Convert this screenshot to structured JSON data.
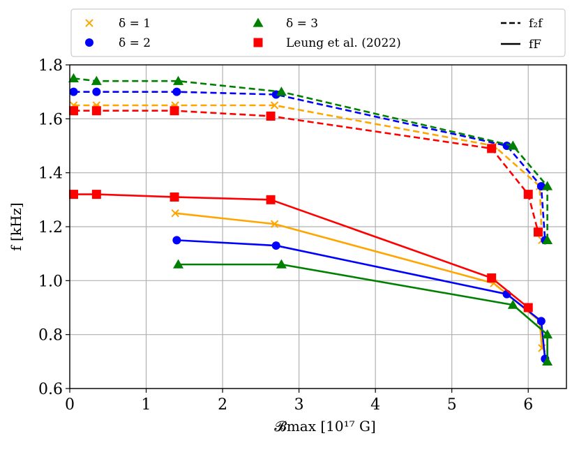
{
  "chart_data": {
    "type": "line",
    "xlabel": "𝓑max [10¹⁷ G]",
    "ylabel": "f [kHz]",
    "xlim": [
      0,
      6.5
    ],
    "ylim": [
      0.6,
      1.8
    ],
    "xticks": [
      "0",
      "1",
      "2",
      "3",
      "4",
      "5",
      "6"
    ],
    "yticks": [
      "0.6",
      "0.8",
      "1.0",
      "1.2",
      "1.4",
      "1.6",
      "1.8"
    ],
    "grid": true,
    "legend_placement": "top (above axes)",
    "legend": {
      "markers": [
        {
          "label": "δ = 1",
          "marker": "x",
          "color": "#FFA500"
        },
        {
          "label": "δ = 2",
          "marker": "circle",
          "color": "#0000FF"
        },
        {
          "label": "δ = 3",
          "marker": "triangle",
          "color": "#008000"
        },
        {
          "label": "Leung et al. (2022)",
          "marker": "square",
          "color": "#FF0000"
        }
      ],
      "lines": [
        {
          "label": "f₂f",
          "style": "dashed"
        },
        {
          "label": "fF",
          "style": "solid"
        }
      ]
    },
    "series": [
      {
        "group": "δ = 1",
        "mode": "2f",
        "style": "dashed",
        "color": "#FFA500",
        "marker": "x",
        "points": [
          [
            0.05,
            1.65
          ],
          [
            0.35,
            1.65
          ],
          [
            1.38,
            1.65
          ],
          [
            2.68,
            1.65
          ],
          [
            5.55,
            1.5
          ],
          [
            6.15,
            1.35
          ],
          [
            6.18,
            1.15
          ]
        ]
      },
      {
        "group": "δ = 1",
        "mode": "F",
        "style": "solid",
        "color": "#FFA500",
        "marker": "x",
        "points": [
          [
            1.38,
            1.25
          ],
          [
            2.68,
            1.21
          ],
          [
            5.55,
            0.99
          ],
          [
            6.15,
            0.85
          ],
          [
            6.18,
            0.75
          ]
        ]
      },
      {
        "group": "δ = 2",
        "mode": "2f",
        "style": "dashed",
        "color": "#0000FF",
        "marker": "circle",
        "points": [
          [
            0.05,
            1.7
          ],
          [
            0.35,
            1.7
          ],
          [
            1.4,
            1.7
          ],
          [
            2.7,
            1.69
          ],
          [
            5.72,
            1.5
          ],
          [
            6.17,
            1.35
          ],
          [
            6.22,
            1.15
          ]
        ]
      },
      {
        "group": "δ = 2",
        "mode": "F",
        "style": "solid",
        "color": "#0000FF",
        "marker": "circle",
        "points": [
          [
            1.4,
            1.15
          ],
          [
            2.7,
            1.13
          ],
          [
            5.72,
            0.95
          ],
          [
            6.17,
            0.85
          ],
          [
            6.22,
            0.71
          ]
        ]
      },
      {
        "group": "δ = 3",
        "mode": "2f",
        "style": "dashed",
        "color": "#008000",
        "marker": "triangle",
        "points": [
          [
            0.05,
            1.75
          ],
          [
            0.35,
            1.74
          ],
          [
            1.42,
            1.74
          ],
          [
            2.77,
            1.7
          ],
          [
            5.8,
            1.5
          ],
          [
            6.25,
            1.35
          ],
          [
            6.25,
            1.15
          ]
        ]
      },
      {
        "group": "δ = 3",
        "mode": "F",
        "style": "solid",
        "color": "#008000",
        "marker": "triangle",
        "points": [
          [
            1.42,
            1.06
          ],
          [
            2.77,
            1.06
          ],
          [
            5.8,
            0.91
          ],
          [
            6.25,
            0.8
          ],
          [
            6.25,
            0.7
          ]
        ]
      },
      {
        "group": "Leung et al. (2022)",
        "mode": "2f",
        "style": "dashed",
        "color": "#FF0000",
        "marker": "square",
        "points": [
          [
            0.05,
            1.63
          ],
          [
            0.35,
            1.63
          ],
          [
            1.37,
            1.63
          ],
          [
            2.63,
            1.61
          ],
          [
            5.52,
            1.49
          ],
          [
            6.0,
            1.32
          ],
          [
            6.13,
            1.18
          ]
        ]
      },
      {
        "group": "Leung et al. (2022)",
        "mode": "F",
        "style": "solid",
        "color": "#FF0000",
        "marker": "square",
        "points": [
          [
            0.05,
            1.32
          ],
          [
            0.35,
            1.32
          ],
          [
            1.37,
            1.31
          ],
          [
            2.63,
            1.3
          ],
          [
            5.52,
            1.01
          ],
          [
            6.0,
            0.9
          ]
        ]
      }
    ]
  }
}
